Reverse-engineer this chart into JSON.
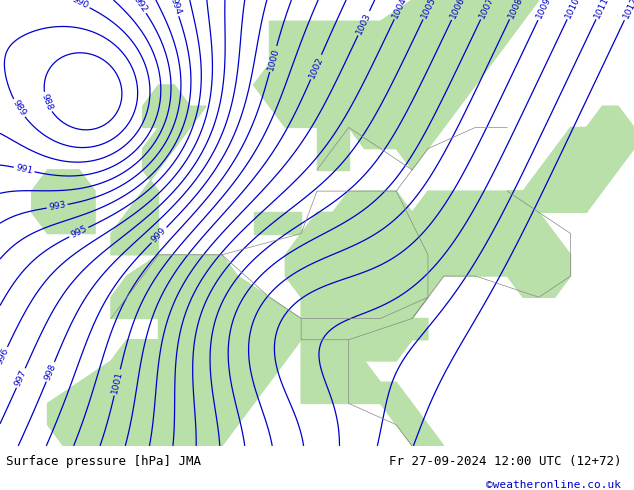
{
  "title_left": "Surface pressure [hPa] JMA",
  "title_right": "Fr 27-09-2024 12:00 UTC (12+72)",
  "credit": "©weatheronline.co.uk",
  "bg_color": "#d8d8d8",
  "land_color": "#b8e0a8",
  "sea_color": "#d8d8d8",
  "contour_color": "#0000cc",
  "border_color": "#888888",
  "text_color_left": "#000000",
  "text_color_right": "#000000",
  "credit_color": "#0000cc",
  "figwidth": 6.34,
  "figheight": 4.9,
  "dpi": 100
}
